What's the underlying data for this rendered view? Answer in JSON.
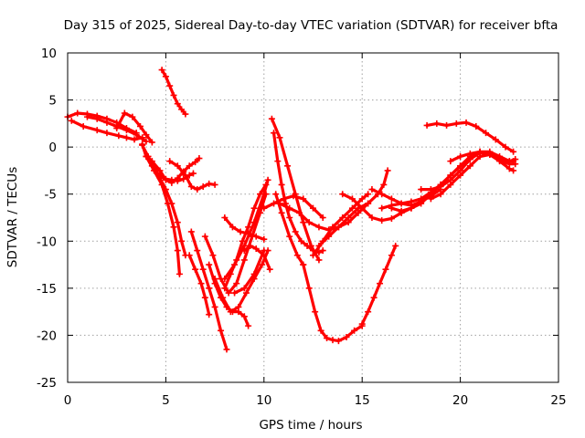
{
  "chart_data": {
    "type": "scatter",
    "title": "Day 315 of 2025, Sidereal Day-to-day VTEC variation (SDTVAR) for receiver bfta",
    "xlabel": "GPS time / hours",
    "ylabel": "SDTVAR / TECUs",
    "xlim": [
      0,
      25
    ],
    "ylim": [
      -25,
      10
    ],
    "xticks": [
      0,
      5,
      10,
      15,
      20,
      25
    ],
    "yticks": [
      -25,
      -20,
      -15,
      -10,
      -5,
      0,
      5,
      10
    ],
    "grid": true,
    "marker": "+",
    "color": "#ff0000",
    "series": [
      {
        "x": [
          0.0,
          0.5,
          1.0,
          1.5,
          2.0,
          2.5,
          3.0,
          3.5
        ],
        "y": [
          3.2,
          3.6,
          3.5,
          3.3,
          3.0,
          2.6,
          2.0,
          1.5
        ]
      },
      {
        "x": [
          0.2,
          0.8,
          1.5,
          2.0,
          2.6,
          3.0,
          3.4,
          3.8
        ],
        "y": [
          2.8,
          2.2,
          1.8,
          1.5,
          1.2,
          1.0,
          0.8,
          1.0
        ]
      },
      {
        "x": [
          1.0,
          1.5,
          2.0,
          2.5,
          3.0,
          3.5,
          4.0
        ],
        "y": [
          3.2,
          3.0,
          2.6,
          2.2,
          1.8,
          1.3,
          0.6
        ]
      },
      {
        "x": [
          2.5,
          2.9,
          3.3,
          3.7,
          4.0,
          4.3
        ],
        "y": [
          2.0,
          3.6,
          3.2,
          2.2,
          1.3,
          0.5
        ]
      },
      {
        "x": [
          3.8,
          4.0,
          4.3,
          4.6,
          5.0,
          5.3,
          5.6,
          5.9,
          6.2,
          6.4
        ],
        "y": [
          0.3,
          -1.0,
          -2.0,
          -2.8,
          -3.4,
          -3.5,
          -3.6,
          -3.4,
          -3.0,
          -2.8
        ]
      },
      {
        "x": [
          3.8,
          4.1,
          4.4,
          4.7,
          5.0,
          5.3,
          5.6,
          5.8,
          6.0
        ],
        "y": [
          0.2,
          -1.0,
          -2.0,
          -3.3,
          -4.5,
          -6.0,
          -8.0,
          -10.0,
          -11.5
        ]
      },
      {
        "x": [
          4.0,
          4.4,
          4.8,
          5.1,
          5.4,
          5.6,
          5.7
        ],
        "y": [
          -1.0,
          -2.5,
          -4.0,
          -6.0,
          -8.5,
          -11.0,
          -13.5
        ]
      },
      {
        "x": [
          4.3,
          4.7,
          5.0,
          5.3,
          5.6,
          5.9,
          6.2,
          6.5,
          6.7
        ],
        "y": [
          -1.5,
          -2.5,
          -3.5,
          -3.8,
          -3.3,
          -2.6,
          -2.0,
          -1.6,
          -1.2
        ]
      },
      {
        "x": [
          5.2,
          5.6,
          6.0,
          6.3,
          6.6,
          6.9,
          7.2,
          7.5
        ],
        "y": [
          -1.5,
          -2.0,
          -3.0,
          -4.2,
          -4.5,
          -4.2,
          -3.9,
          -4.0
        ]
      },
      {
        "x": [
          4.8,
          5.0,
          5.2,
          5.4,
          5.6,
          5.8,
          6.0
        ],
        "y": [
          8.2,
          7.5,
          6.5,
          5.5,
          4.6,
          4.0,
          3.5
        ]
      },
      {
        "x": [
          6.3,
          6.6,
          6.9,
          7.2,
          7.5,
          7.8,
          8.1
        ],
        "y": [
          -9.0,
          -11.0,
          -13.0,
          -15.0,
          -17.0,
          -19.5,
          -21.5
        ]
      },
      {
        "x": [
          6.2,
          6.5,
          6.8,
          7.0,
          7.2
        ],
        "y": [
          -11.5,
          -13.0,
          -14.5,
          -16.0,
          -17.8
        ]
      },
      {
        "x": [
          7.2,
          7.5,
          7.8,
          8.1,
          8.4,
          8.7,
          9.0,
          9.2
        ],
        "y": [
          -12.5,
          -14.5,
          -16.0,
          -17.0,
          -17.5,
          -17.5,
          -18.0,
          -19.0
        ]
      },
      {
        "x": [
          7.0,
          7.4,
          7.8,
          8.2,
          8.6,
          9.0,
          9.4,
          9.8,
          10.1
        ],
        "y": [
          -9.5,
          -11.5,
          -14.0,
          -15.5,
          -14.5,
          -12.0,
          -9.5,
          -7.0,
          -5.0
        ]
      },
      {
        "x": [
          7.5,
          7.9,
          8.3,
          8.7,
          9.1,
          9.5,
          9.9,
          10.2
        ],
        "y": [
          -14.0,
          -16.0,
          -17.5,
          -17.0,
          -15.5,
          -14.0,
          -12.5,
          -11.0
        ]
      },
      {
        "x": [
          8.0,
          8.3,
          8.6,
          8.9,
          9.2,
          9.5,
          9.8,
          10.1
        ],
        "y": [
          -15.0,
          -13.5,
          -12.0,
          -10.0,
          -8.5,
          -6.5,
          -5.0,
          -4.0
        ]
      },
      {
        "x": [
          8.0,
          8.5,
          9.0,
          9.5,
          10.0,
          10.2
        ],
        "y": [
          -14.0,
          -12.5,
          -10.5,
          -8.0,
          -5.0,
          -3.5
        ]
      },
      {
        "x": [
          8.5,
          9.0,
          9.5,
          10.0
        ],
        "y": [
          -15.5,
          -15.0,
          -13.5,
          -11.0
        ]
      },
      {
        "x": [
          8.0,
          8.4,
          8.8,
          9.2,
          9.6,
          10.0
        ],
        "y": [
          -7.5,
          -8.5,
          -9.0,
          -9.2,
          -9.5,
          -9.8
        ]
      },
      {
        "x": [
          9.0,
          9.3,
          9.6,
          10.0,
          10.3
        ],
        "y": [
          -11.0,
          -10.5,
          -10.8,
          -11.5,
          -13.0
        ]
      },
      {
        "x": [
          10.5,
          10.7,
          10.9,
          11.1,
          11.3,
          11.6,
          11.9,
          12.2,
          12.5,
          12.8,
          13.0
        ],
        "y": [
          1.5,
          -1.5,
          -4.0,
          -6.0,
          -7.5,
          -9.0,
          -10.0,
          -10.5,
          -11.0,
          -11.2,
          -11.0
        ]
      },
      {
        "x": [
          10.4,
          10.8,
          11.2,
          11.6,
          12.0,
          12.4,
          12.8
        ],
        "y": [
          3.0,
          1.0,
          -2.0,
          -5.0,
          -8.0,
          -10.5,
          -12.0
        ]
      },
      {
        "x": [
          10.6,
          10.9,
          11.3,
          11.7,
          12.0
        ],
        "y": [
          -5.0,
          -7.0,
          -9.5,
          -11.5,
          -12.5
        ]
      },
      {
        "x": [
          10.8,
          11.3,
          11.8,
          12.3,
          12.8,
          13.3,
          13.8,
          14.3,
          14.8,
          15.3
        ],
        "y": [
          -6.0,
          -6.5,
          -7.0,
          -8.0,
          -8.5,
          -8.8,
          -8.5,
          -7.5,
          -6.5,
          -6.0
        ]
      },
      {
        "x": [
          10.0,
          10.5,
          11.0,
          11.5,
          12.0,
          12.5,
          13.0
        ],
        "y": [
          -6.5,
          -6.0,
          -5.5,
          -5.2,
          -5.5,
          -6.5,
          -7.5
        ]
      },
      {
        "x": [
          12.0,
          12.3,
          12.6,
          12.9,
          13.2,
          13.5,
          13.8,
          14.2,
          14.6,
          15.0
        ],
        "y": [
          -12.5,
          -15.0,
          -17.5,
          -19.5,
          -20.3,
          -20.5,
          -20.6,
          -20.2,
          -19.5,
          -19.0
        ]
      },
      {
        "x": [
          15.0,
          15.3,
          15.6,
          15.9,
          16.2,
          16.5,
          16.7
        ],
        "y": [
          -18.8,
          -17.5,
          -16.0,
          -14.5,
          -13.0,
          -11.5,
          -10.5
        ]
      },
      {
        "x": [
          12.8,
          13.3,
          13.8,
          14.3,
          14.8,
          15.3,
          15.8,
          16.1,
          16.3
        ],
        "y": [
          -10.5,
          -9.5,
          -8.5,
          -8.0,
          -7.0,
          -6.0,
          -5.0,
          -4.0,
          -2.5
        ]
      },
      {
        "x": [
          12.5,
          13.0,
          13.5,
          14.0,
          14.5,
          15.0,
          15.3
        ],
        "y": [
          -11.5,
          -10.0,
          -8.5,
          -7.5,
          -6.5,
          -5.5,
          -5.0
        ]
      },
      {
        "x": [
          14.0,
          14.5,
          15.0,
          15.5,
          16.0,
          16.5,
          17.0,
          17.5
        ],
        "y": [
          -5.0,
          -5.5,
          -6.5,
          -7.5,
          -7.8,
          -7.6,
          -7.0,
          -6.5
        ]
      },
      {
        "x": [
          15.5,
          16.0,
          16.5,
          17.0,
          17.5,
          18.0,
          18.5,
          19.0
        ],
        "y": [
          -4.5,
          -5.0,
          -5.5,
          -6.0,
          -6.2,
          -5.8,
          -5.2,
          -4.5
        ]
      },
      {
        "x": [
          16.5,
          17.0,
          17.5,
          18.0,
          18.5,
          19.0,
          19.5,
          20.0,
          20.5,
          21.0,
          21.5,
          22.0,
          22.5,
          22.7
        ],
        "y": [
          -6.5,
          -6.8,
          -6.5,
          -6.0,
          -5.0,
          -4.0,
          -3.0,
          -2.0,
          -1.0,
          -0.5,
          -0.5,
          -1.0,
          -1.5,
          -1.5
        ]
      },
      {
        "x": [
          16.0,
          16.5,
          17.0,
          17.5,
          18.0,
          18.5,
          19.0,
          19.5,
          20.0
        ],
        "y": [
          -6.5,
          -6.2,
          -6.0,
          -5.8,
          -5.5,
          -4.8,
          -4.0,
          -3.0,
          -2.0
        ]
      },
      {
        "x": [
          18.5,
          19.0,
          19.5,
          20.0,
          20.5,
          21.0,
          21.5,
          22.0,
          22.5,
          22.7
        ],
        "y": [
          -5.5,
          -5.0,
          -4.0,
          -3.0,
          -2.0,
          -1.0,
          -0.8,
          -1.5,
          -2.3,
          -2.5
        ]
      },
      {
        "x": [
          18.0,
          18.5,
          19.0,
          19.5,
          20.0,
          20.5,
          21.0,
          21.5,
          22.0,
          22.5,
          22.8
        ],
        "y": [
          -4.5,
          -4.5,
          -4.2,
          -3.5,
          -2.5,
          -1.3,
          -0.6,
          -0.8,
          -1.4,
          -1.8,
          -1.8
        ]
      },
      {
        "x": [
          18.3,
          18.8,
          19.3,
          19.8,
          20.3,
          20.8,
          21.3,
          21.8,
          22.3,
          22.7
        ],
        "y": [
          2.3,
          2.5,
          2.3,
          2.5,
          2.6,
          2.2,
          1.5,
          0.8,
          0.0,
          -0.5
        ]
      },
      {
        "x": [
          19.5,
          20.0,
          20.5,
          21.0,
          21.5,
          22.0,
          22.5,
          22.8
        ],
        "y": [
          -1.5,
          -1.0,
          -0.7,
          -0.5,
          -0.8,
          -1.3,
          -1.5,
          -1.3
        ]
      }
    ]
  }
}
